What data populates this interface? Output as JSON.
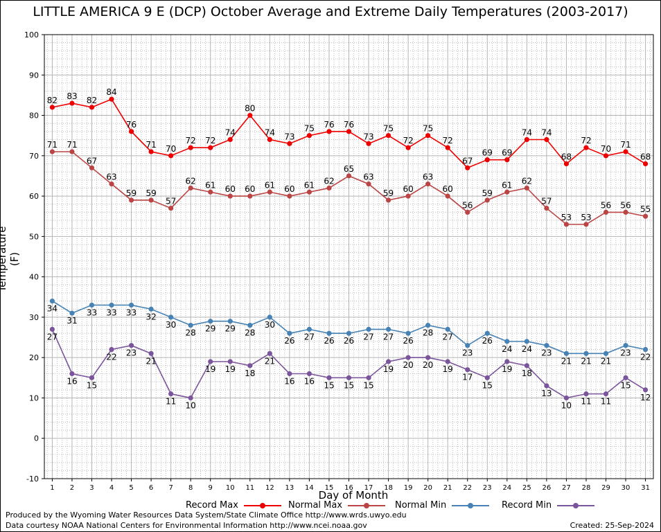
{
  "colors": {
    "record_max": "#ee0000",
    "normal_max": "#bb4444",
    "normal_min": "#4682b4",
    "record_min": "#7b559b",
    "grid_major": "#b4b4b4",
    "grid_minor": "#bcbcbc"
  },
  "footer": {
    "produced_by": "Produced by the Wyoming Water Resources Data System/State Climate Office http://www.wrds.uwyo.edu",
    "data_courtesy": "Data courtesy NOAA National Centers for Environmental Information http://www.ncei.noaa.gov",
    "created": "Created: 25-Sep-2024"
  },
  "chart_data": {
    "type": "line",
    "title": "LITTLE AMERICA 9 E (DCP) October Average and Extreme Daily Temperatures (2003-2017)",
    "xlabel": "Day of Month",
    "ylabel": "Temperature (F)",
    "x": [
      1,
      2,
      3,
      4,
      5,
      6,
      7,
      8,
      9,
      10,
      11,
      12,
      13,
      14,
      15,
      16,
      17,
      18,
      19,
      20,
      21,
      22,
      23,
      24,
      25,
      26,
      27,
      28,
      29,
      30,
      31
    ],
    "xlim": [
      0.6,
      31.4
    ],
    "ylim": [
      -10,
      100
    ],
    "yticks": [
      -10,
      0,
      10,
      20,
      30,
      40,
      50,
      60,
      70,
      80,
      90,
      100
    ],
    "grid": true,
    "legend_placement": "bottom",
    "series": [
      {
        "name": "Record Max",
        "color": "#ee0000",
        "label_position": "above",
        "values": [
          82,
          83,
          82,
          84,
          76,
          71,
          70,
          72,
          72,
          74,
          80,
          74,
          73,
          75,
          76,
          76,
          73,
          75,
          72,
          75,
          72,
          67,
          69,
          69,
          74,
          74,
          68,
          72,
          70,
          71,
          68
        ]
      },
      {
        "name": "Normal Max",
        "color": "#bb4444",
        "label_position": "above",
        "values": [
          71,
          71,
          67,
          63,
          59,
          59,
          57,
          62,
          61,
          60,
          60,
          61,
          60,
          61,
          62,
          65,
          63,
          59,
          60,
          63,
          60,
          56,
          59,
          61,
          62,
          57,
          53,
          53,
          56,
          56,
          55
        ]
      },
      {
        "name": "Normal Min",
        "color": "#4682b4",
        "label_position": "below",
        "values": [
          34,
          31,
          33,
          33,
          33,
          32,
          30,
          28,
          29,
          29,
          28,
          30,
          26,
          27,
          26,
          26,
          27,
          27,
          26,
          28,
          27,
          23,
          26,
          24,
          24,
          23,
          21,
          21,
          21,
          23,
          22
        ]
      },
      {
        "name": "Record Min",
        "color": "#7b559b",
        "label_position": "below",
        "values": [
          27,
          16,
          15,
          22,
          23,
          21,
          11,
          10,
          19,
          19,
          18,
          21,
          16,
          16,
          15,
          15,
          15,
          19,
          20,
          20,
          19,
          17,
          15,
          19,
          18,
          13,
          10,
          11,
          11,
          15,
          12
        ]
      }
    ]
  }
}
